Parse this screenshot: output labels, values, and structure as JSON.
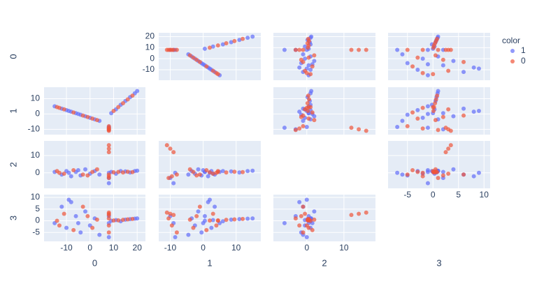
{
  "chart_data": {
    "type": "splom",
    "legend_title": "color",
    "grid": true,
    "dimensions": [
      {
        "label": "0",
        "lim": [
          -19.5,
          23.5
        ],
        "ticks": [
          -10,
          0,
          10,
          20
        ]
      },
      {
        "label": "1",
        "lim": [
          -13.5,
          17.5
        ],
        "ticks": [
          -10,
          0,
          10
        ]
      },
      {
        "label": "2",
        "lim": [
          -9,
          18.5
        ],
        "ticks": [
          0,
          10
        ]
      },
      {
        "label": "3",
        "lim": [
          -8.8,
          11.2
        ],
        "ticks": [
          -5,
          0,
          5,
          10
        ]
      }
    ],
    "series": [
      {
        "name": "1",
        "color": "#636efa",
        "values": [
          [
            -15,
            -12,
            -10,
            -8,
            -6,
            -4,
            -2,
            0,
            2,
            4,
            -9,
            -5,
            9,
            11,
            13,
            15,
            17,
            19,
            20,
            8,
            8,
            8
          ],
          [
            5,
            3.5,
            2.5,
            1.5,
            0.5,
            -0.5,
            -1.5,
            -2.5,
            -3.5,
            -4.5,
            2,
            0,
            0.5,
            3,
            6,
            8.5,
            11,
            13.5,
            15,
            -9,
            -10,
            -8.5
          ],
          [
            0.5,
            -1,
            1,
            -2,
            0.5,
            -1.5,
            2,
            -0.5,
            1,
            -1,
            0,
            1.5,
            0.5,
            -0.5,
            1,
            0.8,
            0.2,
            1,
            1.2,
            -6,
            -3,
            0
          ],
          [
            -1,
            6,
            -3,
            8,
            2,
            -5,
            4,
            -2,
            1,
            -6,
            9,
            -1,
            0,
            0.3,
            -0.2,
            0.5,
            0.7,
            0.9,
            1,
            -1,
            2,
            -7
          ]
        ]
      },
      {
        "name": "0",
        "color": "#ef553b",
        "values": [
          [
            -14,
            -11,
            -7,
            -3,
            1,
            3,
            -13,
            -1,
            10,
            12,
            14,
            16,
            18,
            8,
            8,
            8,
            8,
            8,
            8
          ],
          [
            4.5,
            3,
            1,
            -1,
            -3,
            -4,
            4,
            -2,
            2,
            4.5,
            7,
            9.5,
            12,
            -9,
            -10,
            -11,
            -9.5,
            -10.5,
            -8
          ],
          [
            1,
            -0.5,
            1.5,
            -1,
            0.5,
            2,
            0,
            -1.5,
            0.3,
            0.5,
            0.2,
            0.6,
            0.4,
            12,
            14,
            16,
            -2,
            -3,
            -1
          ],
          [
            0,
            3,
            -4,
            6,
            -3,
            0.5,
            -2,
            2,
            0.1,
            0.2,
            0.4,
            0.6,
            0.8,
            2.5,
            3,
            3.5,
            -2,
            1,
            -5
          ]
        ]
      }
    ]
  }
}
